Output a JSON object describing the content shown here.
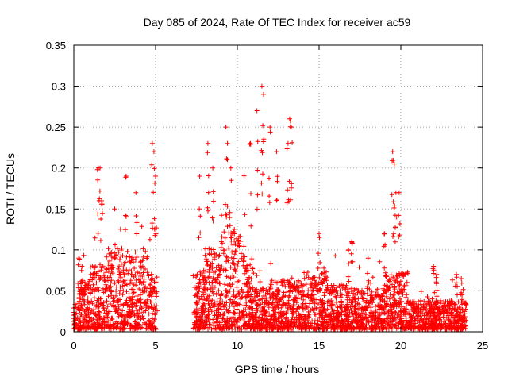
{
  "chart_data": {
    "type": "scatter",
    "title": "Day 085 of 2024, Rate Of TEC Index for receiver ac59",
    "xlabel": "GPS time / hours",
    "ylabel": "ROTI / TECUs",
    "xlim": [
      0,
      25
    ],
    "ylim": [
      0,
      0.35
    ],
    "xticks": [
      "0",
      "5",
      "10",
      "15",
      "20",
      "25"
    ],
    "yticks": [
      "0",
      "0.05",
      "0.1",
      "0.15",
      "0.2",
      "0.25",
      "0.3",
      "0.35"
    ],
    "xtick_values": [
      0,
      5,
      10,
      15,
      20,
      25
    ],
    "ytick_values": [
      0,
      0.05,
      0.1,
      0.15,
      0.2,
      0.25,
      0.3,
      0.35
    ],
    "grid": true,
    "marker": "+",
    "color": "#ff0000",
    "data_gaps_hours": [
      [
        5.1,
        7.3
      ]
    ],
    "series": [
      {
        "values_peaks": [
          [
            0.3,
            0.09
          ],
          [
            0.5,
            0.08
          ],
          [
            1.5,
            0.2
          ],
          [
            1.6,
            0.2
          ],
          [
            1.7,
            0.16
          ],
          [
            2.5,
            0.15
          ],
          [
            3.2,
            0.19
          ],
          [
            3.8,
            0.17
          ],
          [
            4.8,
            0.23
          ],
          [
            4.9,
            0.22
          ],
          [
            5.0,
            0.19
          ],
          [
            7.7,
            0.19
          ],
          [
            8.2,
            0.23
          ],
          [
            8.5,
            0.2
          ],
          [
            9.3,
            0.25
          ],
          [
            9.4,
            0.23
          ],
          [
            9.6,
            0.2
          ],
          [
            10.8,
            0.23
          ],
          [
            11.2,
            0.27
          ],
          [
            11.5,
            0.3
          ],
          [
            11.6,
            0.29
          ],
          [
            12.0,
            0.25
          ],
          [
            12.4,
            0.22
          ],
          [
            13.2,
            0.26
          ],
          [
            13.3,
            0.25
          ],
          [
            13.1,
            0.23
          ],
          [
            15.0,
            0.12
          ],
          [
            16.8,
            0.1
          ],
          [
            17.0,
            0.11
          ],
          [
            18.0,
            0.09
          ],
          [
            19.0,
            0.12
          ],
          [
            19.5,
            0.22
          ],
          [
            19.6,
            0.205
          ],
          [
            19.7,
            0.17
          ],
          [
            19.9,
            0.17
          ],
          [
            22.0,
            0.08
          ],
          [
            22.2,
            0.07
          ],
          [
            23.4,
            0.07
          ],
          [
            23.7,
            0.065
          ]
        ]
      }
    ]
  }
}
